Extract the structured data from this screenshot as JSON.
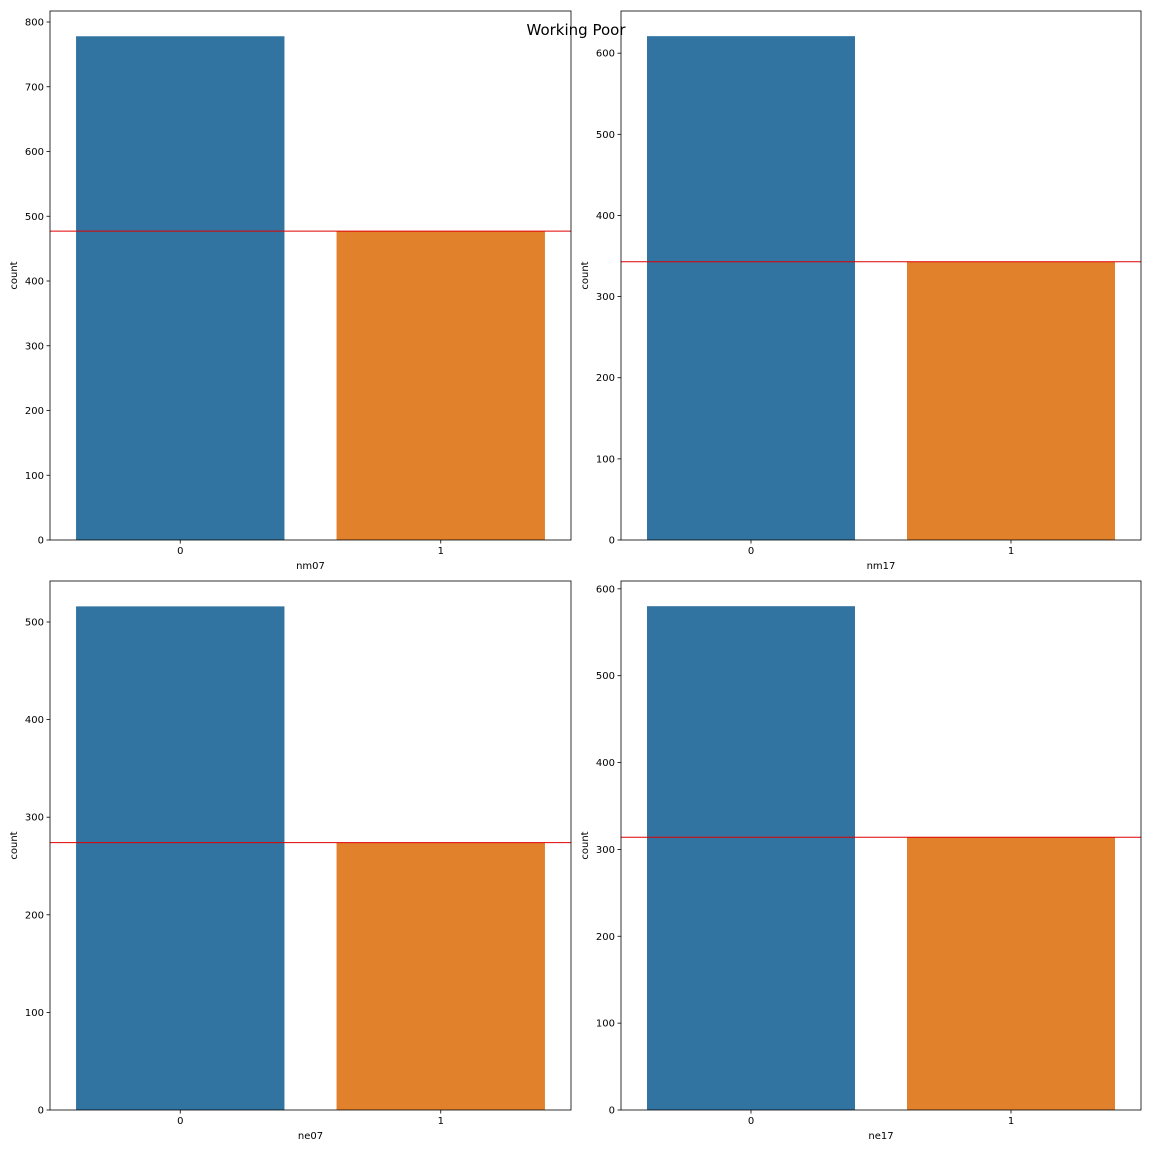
{
  "figure": {
    "title": "Working Poor"
  },
  "colors": {
    "category_0": "#3274a1",
    "category_1": "#e1812c",
    "reference_line": "#e00000"
  },
  "chart_data": [
    {
      "type": "bar",
      "title": "",
      "xlabel": "nm07",
      "ylabel": "count",
      "categories": [
        "0",
        "1"
      ],
      "values": [
        778,
        477
      ],
      "reference_line": 477,
      "ylim": [
        0,
        817
      ],
      "yticks": [
        "0",
        "100",
        "200",
        "300",
        "400",
        "500",
        "600",
        "700",
        "800"
      ]
    },
    {
      "type": "bar",
      "title": "",
      "xlabel": "nm17",
      "ylabel": "count",
      "categories": [
        "0",
        "1"
      ],
      "values": [
        621,
        343
      ],
      "reference_line": 343,
      "ylim": [
        0,
        652
      ],
      "yticks": [
        "0",
        "100",
        "200",
        "300",
        "400",
        "500",
        "600"
      ]
    },
    {
      "type": "bar",
      "title": "",
      "xlabel": "ne07",
      "ylabel": "count",
      "categories": [
        "0",
        "1"
      ],
      "values": [
        516,
        274
      ],
      "reference_line": 274,
      "ylim": [
        0,
        542
      ],
      "yticks": [
        "0",
        "100",
        "200",
        "300",
        "400",
        "500"
      ]
    },
    {
      "type": "bar",
      "title": "",
      "xlabel": "ne17",
      "ylabel": "count",
      "categories": [
        "0",
        "1"
      ],
      "values": [
        580,
        314
      ],
      "reference_line": 314,
      "ylim": [
        0,
        609
      ],
      "yticks": [
        "0",
        "100",
        "200",
        "300",
        "400",
        "500",
        "600"
      ]
    }
  ]
}
